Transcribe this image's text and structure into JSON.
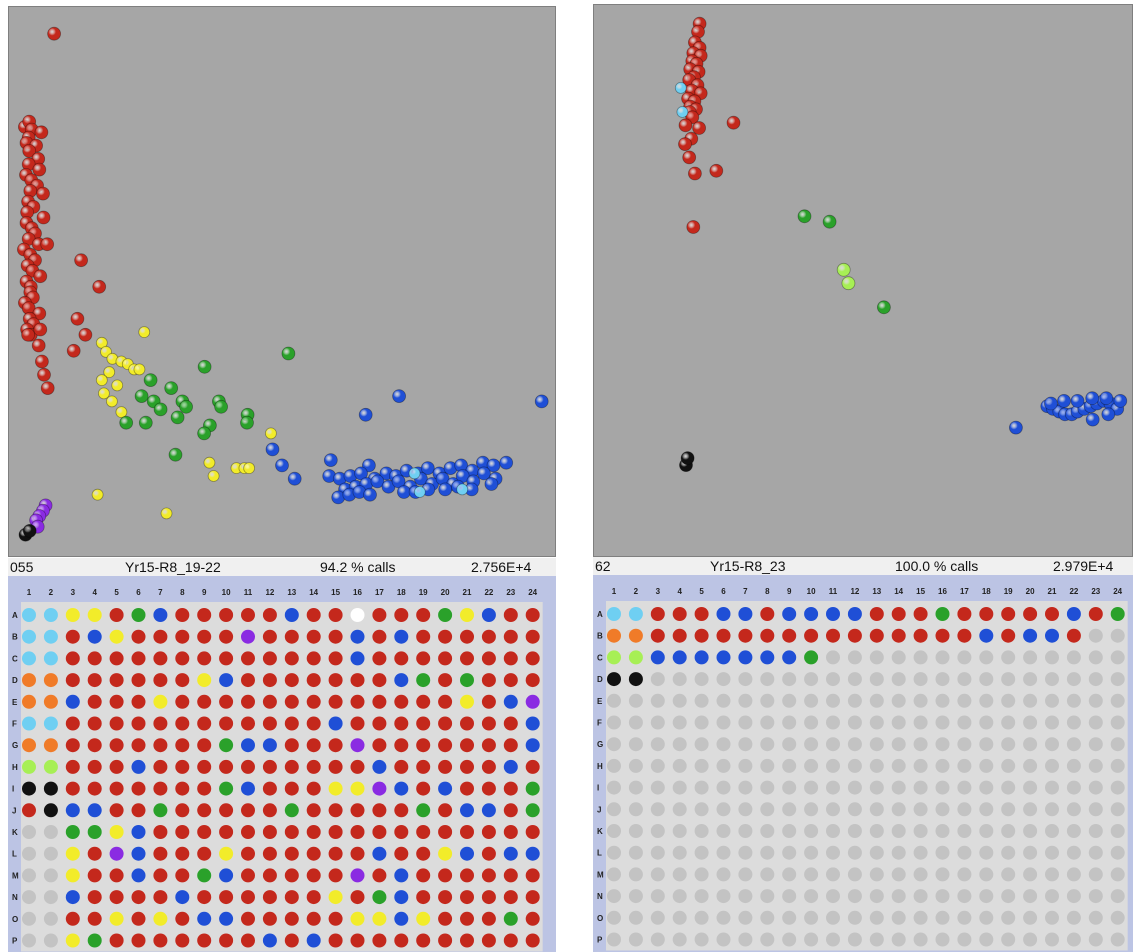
{
  "colors": {
    "red": "#c4281c",
    "blue": "#1f4fd6",
    "yellow": "#f2ec2a",
    "green": "#2aa12a",
    "lightgreen": "#a7ef55",
    "lightblue": "#6fcff2",
    "orange": "#f07b28",
    "purple": "#8a2be2",
    "black": "#111111",
    "white": "#ffffff",
    "grey": "#c3c3c3",
    "scatter_bg": "#a6a6a6",
    "plate_bg": "#bcc4e4",
    "well_area_bg": "#dcdcdc"
  },
  "panels": [
    {
      "status": {
        "id": "055",
        "name": "Yr15-R8_19-22",
        "calls": "94.2 % calls",
        "value": "2.756E+4"
      },
      "plate": {
        "columns": [
          "1",
          "2",
          "3",
          "4",
          "5",
          "6",
          "7",
          "8",
          "9",
          "10",
          "11",
          "12",
          "13",
          "14",
          "15",
          "16",
          "17",
          "18",
          "19",
          "20",
          "21",
          "22",
          "23",
          "24"
        ],
        "rows": [
          "A",
          "B",
          "C",
          "D",
          "E",
          "F",
          "G",
          "H",
          "I",
          "J",
          "K",
          "L",
          "M",
          "N",
          "O",
          "P"
        ],
        "wells": [
          "CCYYRGBRRRRRBRRWRRRGYBRR",
          "CCRBYRRRRRPRRRRBRBRRRRRR",
          "CCRRRRRRRRRRRRRBRRRRRRRR",
          "OORRRRRRYBRRRRRRRBGRGRRR",
          "OOBRRRYRRRRRRRRRRRRRYRBP",
          "CCRRRRRRRRRRRRBRRRRRRRRB",
          "OORRRRRRRGBBRRRPRRRRRRRB",
          "LLRRRBRRRRRRRRRRBRRRRRBR",
          "KKRRRRRRRGBRRRYYPBRBRRRG",
          "RKBBRRGRRRRRGRRRRRGRBBRG",
          "XXGGYBRRRRRRRRRRRRRRRRRR",
          "XXYRPBRRRYRRRRRRBRRYBRBB",
          "XXYRRBRRGBRRRRRPRBRRRRRR",
          "XXBRRRRBRRRRRRYRGBRRRRRR",
          "XXRRYRYRBBRRRRRYYBYRRRGR",
          "XXYGRRRRRRRBRBRRRRRRRRRR"
        ]
      },
      "chart_data": {
        "type": "scatter",
        "title": "",
        "xlabel": "",
        "ylabel": "",
        "xlim": [
          0,
          100
        ],
        "ylim": [
          0,
          100
        ],
        "grid": false,
        "series": [
          {
            "color": "red",
            "x": [
              7.0,
              1.5,
              2.3,
              2.8,
              4.6,
              2.2,
              1.8,
              3.6,
              2.3,
              4.0,
              2.2,
              4.2,
              1.7,
              2.7,
              3.8,
              2.5,
              4.9,
              2.1,
              3.1,
              1.9,
              5.0,
              1.8,
              2.8,
              3.4,
              2.2,
              4.1,
              1.3,
              2.5,
              3.4,
              2.0,
              2.9,
              4.4,
              1.8,
              2.6,
              5.7,
              2.5,
              3.0,
              1.5,
              2.2,
              4.2,
              2.4,
              3.1,
              1.9,
              2.6,
              4.4,
              2.1,
              12.1,
              15.5,
              11.4,
              12.9,
              10.7,
              4.1,
              4.7,
              5.1,
              5.8
            ],
            "y": [
              96.5,
              79.0,
              80.0,
              78.5,
              78.0,
              77.0,
              76.0,
              75.5,
              74.5,
              73.0,
              72.0,
              71.0,
              70.0,
              69.0,
              68.0,
              67.0,
              66.5,
              65.0,
              64.0,
              63.0,
              62.0,
              61.0,
              60.0,
              59.0,
              58.0,
              57.0,
              56.0,
              55.0,
              54.0,
              53.0,
              52.0,
              51.0,
              50.0,
              49.0,
              57.0,
              48.0,
              47.0,
              46.0,
              45.0,
              44.0,
              43.0,
              42.0,
              41.0,
              40.0,
              41.0,
              40.0,
              54.0,
              49.0,
              43.0,
              40.0,
              37.0,
              38.0,
              35.0,
              32.5,
              30.0
            ]
          },
          {
            "color": "yellow",
            "x": [
              24.0,
              16.0,
              16.8,
              18.0,
              19.7,
              20.9,
              22.1,
              23.1,
              17.4,
              16.0,
              18.9,
              16.4,
              17.9,
              19.7,
              47.9,
              36.3,
              41.4,
              42.9,
              43.8,
              37.1,
              15.2,
              28.2
            ],
            "y": [
              40.5,
              38.5,
              36.8,
              35.5,
              35.0,
              34.5,
              33.5,
              33.5,
              33.0,
              31.5,
              30.5,
              29.0,
              27.5,
              25.5,
              21.5,
              16.0,
              15.0,
              15.0,
              15.0,
              13.5,
              10.0,
              6.5
            ],
            "size": "small"
          },
          {
            "color": "green",
            "x": [
              51.2,
              35.4,
              25.2,
              29.1,
              23.5,
              25.8,
              31.2,
              31.9,
              38.1,
              38.5,
              27.1,
              20.6,
              24.3,
              30.3,
              43.5,
              43.4,
              36.4,
              35.3,
              29.9
            ],
            "y": [
              36.5,
              34.0,
              31.5,
              30.0,
              28.5,
              27.5,
              27.5,
              26.5,
              27.5,
              26.5,
              26.0,
              23.5,
              23.5,
              24.5,
              25.0,
              23.5,
              23.0,
              21.5,
              17.5
            ]
          },
          {
            "color": "blue",
            "x": [
              99.0,
              72.1,
              65.8,
              48.2,
              59.2,
              50.0,
              52.4,
              66.4,
              58.9,
              60.9,
              62.9,
              64.9,
              67.5,
              69.7,
              71.5,
              73.5,
              75.7,
              77.5,
              79.7,
              81.8,
              83.8,
              85.9,
              87.9,
              89.9,
              92.3,
              61.9,
              63.9,
              65.9,
              68.0,
              70.1,
              72.0,
              74.2,
              76.2,
              78.3,
              80.3,
              82.3,
              84.1,
              86.1,
              88.1,
              90.3,
              60.6,
              62.7,
              64.6,
              66.6,
              73.0,
              75.2,
              77.6,
              80.8,
              83.2,
              85.8,
              89.5
            ],
            "y": [
              27.5,
              28.5,
              25.0,
              18.5,
              16.5,
              15.5,
              13.0,
              15.5,
              13.5,
              13.0,
              13.5,
              14.0,
              13.0,
              14.0,
              13.5,
              14.5,
              14.0,
              15.0,
              14.0,
              15.0,
              15.5,
              14.5,
              16.0,
              15.5,
              16.0,
              11.0,
              11.5,
              12.0,
              12.5,
              11.5,
              12.5,
              11.5,
              13.0,
              12.0,
              13.0,
              12.0,
              13.5,
              12.5,
              14.0,
              13.0,
              9.5,
              10.0,
              10.5,
              10.0,
              10.5,
              10.5,
              11.0,
              11.0,
              11.5,
              11.0,
              12.0
            ]
          },
          {
            "color": "lightblue",
            "x": [
              75.0,
              84.0,
              76.0
            ],
            "y": [
              14.0,
              11.0,
              10.5
            ],
            "size": "small"
          },
          {
            "color": "purple",
            "x": [
              5.4,
              4.9,
              4.2,
              3.6,
              3.9
            ],
            "y": [
              8.0,
              7.0,
              6.0,
              5.2,
              4.0
            ]
          },
          {
            "color": "black",
            "x": [
              1.6,
              2.4
            ],
            "y": [
              2.5,
              3.2
            ]
          }
        ]
      }
    },
    {
      "status": {
        "id": "62",
        "name": "Yr15-R8_23",
        "calls": "100.0 % calls",
        "value": "2.979E+4"
      },
      "plate": {
        "columns": [
          "1",
          "2",
          "3",
          "4",
          "5",
          "6",
          "7",
          "8",
          "9",
          "10",
          "11",
          "12",
          "13",
          "14",
          "15",
          "16",
          "17",
          "18",
          "19",
          "20",
          "21",
          "22",
          "23",
          "24"
        ],
        "rows": [
          "A",
          "B",
          "C",
          "D",
          "E",
          "F",
          "G",
          "H",
          "I",
          "J",
          "K",
          "L",
          "M",
          "N",
          "O",
          "P"
        ],
        "wells": [
          "CCRRRBBRBBBBRRRGRRRRRBRG",
          "OORRRRRRRRRRRRRRRBRBBRXX",
          "LLBBBBBBBGXXXXXXXXXXXXXX",
          "KKXXXXXXXXXXXXXXXXXXXXXX",
          "XXXXXXXXXXXXXXXXXXXXXXXX",
          "XXXXXXXXXXXXXXXXXXXXXXXX",
          "XXXXXXXXXXXXXXXXXXXXXXXX",
          "XXXXXXXXXXXXXXXXXXXXXXXX",
          "XXXXXXXXXXXXXXXXXXXXXXXX",
          "XXXXXXXXXXXXXXXXXXXXXXXX",
          "XXXXXXXXXXXXXXXXXXXXXXXX",
          "XXXXXXXXXXXXXXXXXXXXXXXX",
          "XXXXXXXXXXXXXXXXXXXXXXXX",
          "XXXXXXXXXXXXXXXXXXXXXXXX",
          "XXXXXXXXXXXXXXXXXXXXXXXX",
          "XXXXXXXXXXXXXXXXXXXXXXXX"
        ]
      },
      "chart_data": {
        "type": "scatter",
        "title": "",
        "xlabel": "",
        "ylabel": "",
        "xlim": [
          0,
          100
        ],
        "ylim": [
          0,
          100
        ],
        "grid": false,
        "series": [
          {
            "color": "red",
            "x": [
              18.7,
              18.4,
              17.8,
              18.7,
              17.5,
              18.9,
              17.3,
              18.1,
              16.9,
              18.5,
              17.6,
              16.7,
              18.3,
              17.2,
              18.9,
              16.5,
              17.7,
              16.9,
              18.0,
              16.8,
              17.3,
              16.0,
              18.6,
              25.2,
              17.1,
              15.9,
              16.7,
              21.9,
              17.8,
              17.5
            ],
            "y": [
              98.0,
              96.5,
              94.5,
              93.5,
              92.5,
              92.0,
              91.0,
              90.5,
              89.5,
              89.0,
              88.0,
              87.5,
              86.5,
              85.5,
              85.0,
              84.0,
              83.5,
              82.5,
              82.0,
              81.5,
              80.5,
              79.0,
              78.5,
              79.5,
              76.5,
              75.5,
              73.0,
              70.5,
              70.0,
              60.0
            ]
          },
          {
            "color": "green",
            "x": [
              38.8,
              43.6,
              54.0
            ],
            "y": [
              62.0,
              61.0,
              45.0
            ]
          },
          {
            "color": "lightgreen",
            "x": [
              46.3,
              47.2
            ],
            "y": [
              52.0,
              49.5
            ]
          },
          {
            "color": "blue",
            "x": [
              79.3,
              85.3,
              86.4,
              87.6,
              88.7,
              90.0,
              91.1,
              92.4,
              93.6,
              94.8,
              96.1,
              97.4,
              98.7,
              86.0,
              88.5,
              91.1,
              93.9,
              96.6,
              99.3,
              94.0,
              97.0
            ],
            "y": [
              22.5,
              26.5,
              26.0,
              25.5,
              25.0,
              25.0,
              25.5,
              26.0,
              26.5,
              27.0,
              27.5,
              27.0,
              26.0,
              27.0,
              27.5,
              27.5,
              28.0,
              28.0,
              27.5,
              24.0,
              25.0
            ]
          },
          {
            "color": "lightblue",
            "x": [
              15.1,
              15.4
            ],
            "y": [
              86.0,
              81.5
            ],
            "size": "small"
          },
          {
            "color": "black",
            "x": [
              16.1,
              16.4
            ],
            "y": [
              15.5,
              16.8
            ]
          }
        ]
      }
    }
  ]
}
